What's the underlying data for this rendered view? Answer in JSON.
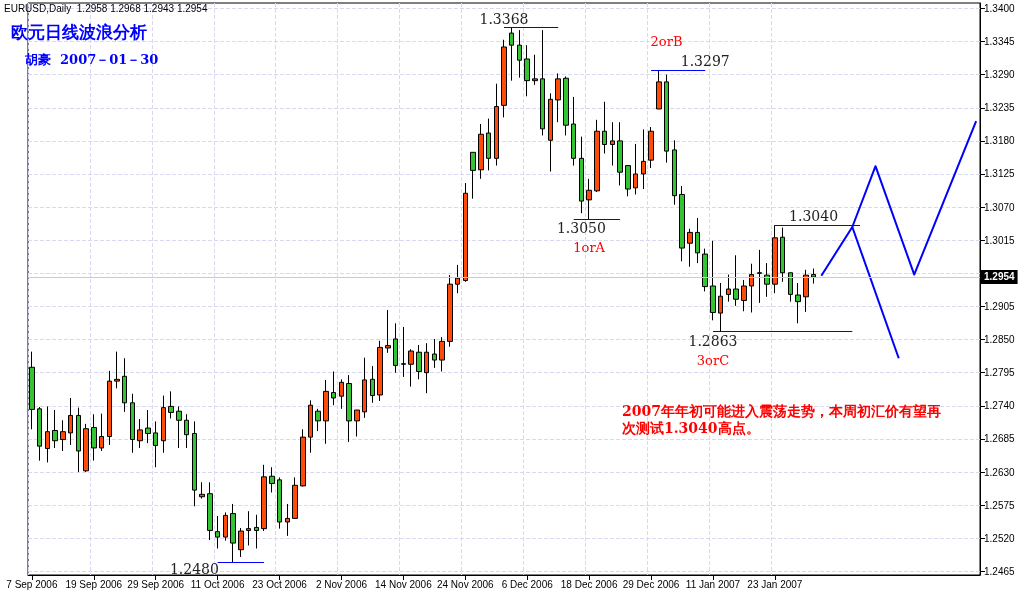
{
  "chart_data": {
    "type": "candlestick",
    "title": "欧元日线波浪分析",
    "subtitle": "胡豪  2007－01－30",
    "annotations": [
      "EURUSD,Daily  1.2958 1.2968 1.2943 1.2954",
      "2007年年初可能进入震荡走势，本周初汇价有望再次测试1.3040高点。",
      "1.3368",
      "1.3297",
      "2orB",
      "1.3050",
      "1orA",
      "1.3040",
      "1.2863",
      "3orC",
      "1.2480"
    ],
    "categories": [
      "7 Sep 2006",
      null,
      null,
      null,
      null,
      null,
      null,
      null,
      "19 Sep 2006",
      null,
      null,
      null,
      null,
      null,
      null,
      null,
      "29 Sep 2006",
      null,
      null,
      null,
      null,
      null,
      null,
      null,
      "11 Oct 2006",
      null,
      null,
      null,
      null,
      null,
      null,
      null,
      "23 Oct 2006",
      null,
      null,
      null,
      null,
      null,
      null,
      null,
      "2 Nov 2006",
      null,
      null,
      null,
      null,
      null,
      null,
      null,
      "14 Nov 2006",
      null,
      null,
      null,
      null,
      null,
      null,
      null,
      "24 Nov 2006",
      null,
      null,
      null,
      null,
      null,
      null,
      null,
      "6 Dec 2006",
      null,
      null,
      null,
      null,
      null,
      null,
      null,
      "18 Dec 2006",
      null,
      null,
      null,
      null,
      null,
      null,
      null,
      "29 Dec 2006",
      null,
      null,
      null,
      null,
      null,
      null,
      null,
      "11 Jan 2007",
      null,
      null,
      null,
      null,
      null,
      null,
      null,
      "23 Jan 2007",
      null,
      null,
      null,
      null,
      null,
      null,
      null,
      null,
      null,
      null,
      null,
      null,
      null,
      null,
      null,
      null,
      null,
      null,
      null,
      null,
      null,
      null,
      null,
      null,
      null,
      null
    ],
    "ohlc": [
      [
        1.2804,
        1.283,
        1.2701,
        1.2734
      ],
      [
        1.2735,
        1.2738,
        1.2649,
        1.2673
      ],
      [
        1.2669,
        1.2739,
        1.2646,
        1.2697
      ],
      [
        1.2699,
        1.2733,
        1.267,
        1.2682
      ],
      [
        1.2684,
        1.2716,
        1.2665,
        1.2697
      ],
      [
        1.2695,
        1.2753,
        1.2675,
        1.2724
      ],
      [
        1.2724,
        1.2737,
        1.263,
        1.2665
      ],
      [
        1.2632,
        1.271,
        1.263,
        1.2702
      ],
      [
        1.2704,
        1.2726,
        1.2649,
        1.267
      ],
      [
        1.267,
        1.2727,
        1.2665,
        1.2689
      ],
      [
        1.2689,
        1.2798,
        1.2675,
        1.2781
      ],
      [
        1.2781,
        1.283,
        1.2769,
        1.2784
      ],
      [
        1.2789,
        1.2819,
        1.273,
        1.2745
      ],
      [
        1.2745,
        1.276,
        1.2662,
        1.2684
      ],
      [
        1.2682,
        1.2718,
        1.267,
        1.27
      ],
      [
        1.2703,
        1.2733,
        1.2678,
        1.2694
      ],
      [
        1.2695,
        1.2714,
        1.2638,
        1.2674
      ],
      [
        1.2682,
        1.2757,
        1.2662,
        1.2737
      ],
      [
        1.2739,
        1.2764,
        1.2719,
        1.2729
      ],
      [
        1.2731,
        1.2739,
        1.267,
        1.2716
      ],
      [
        1.2716,
        1.2726,
        1.267,
        1.2692
      ],
      [
        1.2694,
        1.2714,
        1.2573,
        1.26
      ],
      [
        1.2589,
        1.2613,
        1.2586,
        1.2593
      ],
      [
        1.2594,
        1.2613,
        1.2517,
        1.2533
      ],
      [
        1.2531,
        1.2557,
        1.2503,
        1.2522
      ],
      [
        1.2522,
        1.2563,
        1.2516,
        1.2558
      ],
      [
        1.2561,
        1.2577,
        1.248,
        1.2512
      ],
      [
        1.2501,
        1.2537,
        1.2489,
        1.2532
      ],
      [
        1.2533,
        1.2565,
        1.2508,
        1.2536
      ],
      [
        1.2538,
        1.2559,
        1.2503,
        1.2533
      ],
      [
        1.2536,
        1.2642,
        1.2532,
        1.2622
      ],
      [
        1.2623,
        1.2638,
        1.2596,
        1.2611
      ],
      [
        1.2617,
        1.2621,
        1.2536,
        1.2547
      ],
      [
        1.2547,
        1.2577,
        1.2524,
        1.2553
      ],
      [
        1.2553,
        1.2621,
        1.2553,
        1.2608
      ],
      [
        1.2607,
        1.2701,
        1.2606,
        1.2688
      ],
      [
        1.2688,
        1.2749,
        1.2662,
        1.2741
      ],
      [
        1.2731,
        1.2735,
        1.2698,
        1.2715
      ],
      [
        1.2715,
        1.2783,
        1.2677,
        1.2764
      ],
      [
        1.2762,
        1.2797,
        1.2741,
        1.2753
      ],
      [
        1.2756,
        1.2784,
        1.2735,
        1.2779
      ],
      [
        1.2777,
        1.2791,
        1.268,
        1.2715
      ],
      [
        1.2715,
        1.2733,
        1.2689,
        1.2733
      ],
      [
        1.273,
        1.282,
        1.272,
        1.2783
      ],
      [
        1.2784,
        1.2806,
        1.2745,
        1.2757
      ],
      [
        1.2758,
        1.2848,
        1.2748,
        1.2837
      ],
      [
        1.2836,
        1.2899,
        1.2828,
        1.284
      ],
      [
        1.2851,
        1.2877,
        1.2795,
        1.2807
      ],
      [
        1.281,
        1.2871,
        1.2788,
        1.2809
      ],
      [
        1.2809,
        1.2834,
        1.2772,
        1.2831
      ],
      [
        1.2829,
        1.2841,
        1.2784,
        1.2797
      ],
      [
        1.2795,
        1.2844,
        1.2761,
        1.2829
      ],
      [
        1.2826,
        1.2851,
        1.2803,
        1.2816
      ],
      [
        1.2816,
        1.2854,
        1.2797,
        1.2847
      ],
      [
        1.2847,
        1.2957,
        1.2838,
        1.2942
      ],
      [
        1.2942,
        1.2974,
        1.2927,
        1.2952
      ],
      [
        1.2948,
        1.311,
        1.2946,
        1.3093
      ],
      [
        1.3161,
        1.3161,
        1.3084,
        1.3131
      ],
      [
        1.3132,
        1.3208,
        1.3117,
        1.3191
      ],
      [
        1.3193,
        1.3217,
        1.3131,
        1.3151
      ],
      [
        1.3151,
        1.3275,
        1.3139,
        1.3237
      ],
      [
        1.3239,
        1.3348,
        1.3219,
        1.3336
      ],
      [
        1.3359,
        1.3368,
        1.328,
        1.3339
      ],
      [
        1.3339,
        1.3364,
        1.3285,
        1.3314
      ],
      [
        1.3316,
        1.3339,
        1.3254,
        1.328
      ],
      [
        1.328,
        1.3323,
        1.3273,
        1.3283
      ],
      [
        1.3283,
        1.3364,
        1.3189,
        1.32
      ],
      [
        1.3181,
        1.3259,
        1.3129,
        1.3249
      ],
      [
        1.3248,
        1.3292,
        1.3211,
        1.3283
      ],
      [
        1.3284,
        1.3287,
        1.3189,
        1.3206
      ],
      [
        1.3208,
        1.3253,
        1.3139,
        1.3151
      ],
      [
        1.3151,
        1.3187,
        1.306,
        1.308
      ],
      [
        1.3082,
        1.3117,
        1.305,
        1.3098
      ],
      [
        1.3097,
        1.3215,
        1.3095,
        1.3196
      ],
      [
        1.3196,
        1.3245,
        1.3159,
        1.3174
      ],
      [
        1.3174,
        1.3211,
        1.3139,
        1.318
      ],
      [
        1.318,
        1.3211,
        1.3106,
        1.3128
      ],
      [
        1.3139,
        1.3139,
        1.3088,
        1.31
      ],
      [
        1.3102,
        1.3175,
        1.3091,
        1.3125
      ],
      [
        1.3125,
        1.3199,
        1.31,
        1.3146
      ],
      [
        1.3148,
        1.3203,
        1.3135,
        1.3196
      ],
      [
        1.3233,
        1.3297,
        1.3233,
        1.3278
      ],
      [
        1.3278,
        1.329,
        1.3144,
        1.3163
      ],
      [
        1.3165,
        1.3181,
        1.3074,
        1.3089
      ],
      [
        1.3091,
        1.3105,
        1.298,
        1.3002
      ],
      [
        1.301,
        1.3034,
        1.2971,
        1.3028
      ],
      [
        1.3028,
        1.3052,
        1.2977,
        1.2994
      ],
      [
        1.2992,
        1.3001,
        1.293,
        1.2938
      ],
      [
        1.2939,
        1.3014,
        1.2882,
        1.2895
      ],
      [
        1.2894,
        1.2944,
        1.2863,
        1.2922
      ],
      [
        1.2925,
        1.2958,
        1.2913,
        1.2934
      ],
      [
        1.2934,
        1.299,
        1.2906,
        1.2917
      ],
      [
        1.2915,
        1.2949,
        1.2897,
        1.2939
      ],
      [
        1.2939,
        1.2976,
        1.2895,
        1.2958
      ],
      [
        1.2961,
        1.2999,
        1.2911,
        1.296
      ],
      [
        1.2957,
        1.2977,
        1.2921,
        1.2942
      ],
      [
        1.2942,
        1.304,
        1.2927,
        1.3019
      ],
      [
        1.302,
        1.3036,
        1.2946,
        1.2961
      ],
      [
        1.2961,
        1.2961,
        1.2913,
        1.2925
      ],
      [
        1.2924,
        1.2944,
        1.2877,
        1.2913
      ],
      [
        1.2921,
        1.2966,
        1.2896,
        1.2957
      ],
      [
        1.2958,
        1.2968,
        1.2943,
        1.2954
      ],
      null,
      null,
      null,
      null,
      null,
      null,
      null,
      null,
      null,
      null,
      null,
      null,
      null,
      null,
      null,
      null,
      null,
      null,
      null,
      null,
      null
    ],
    "colors": [
      "#33c433",
      "#33c433",
      "#ff4a0a",
      "#33c433",
      "#ff4a0a",
      "#ff4a0a",
      "#33c433",
      "#ff4a0a",
      "#33c433",
      "#ff4a0a",
      "#ff4a0a",
      "#ff4a0a",
      "#33c433",
      "#33c433",
      "#ff4a0a",
      "#33c433",
      "#33c433",
      "#ff4a0a",
      "#33c433",
      "#33c433",
      "#33c433",
      "#33c433",
      "#ff4a0a",
      "#33c433",
      "#33c433",
      "#ff4a0a",
      "#33c433",
      "#ff4a0a",
      "#ff4a0a",
      "#33c433",
      "#ff4a0a",
      "#33c433",
      "#33c433",
      "#ff4a0a",
      "#ff4a0a",
      "#ff4a0a",
      "#ff4a0a",
      "#33c433",
      "#ff4a0a",
      "#33c433",
      "#ff4a0a",
      "#33c433",
      "#ff4a0a",
      "#ff4a0a",
      "#33c433",
      "#ff4a0a",
      "#ff4a0a",
      "#33c433",
      "#33c433",
      "#ff4a0a",
      "#33c433",
      "#ff4a0a",
      "#33c433",
      "#ff4a0a",
      "#ff4a0a",
      "#ff4a0a",
      "#ff4a0a",
      "#33c433",
      "#ff4a0a",
      "#33c433",
      "#ff4a0a",
      "#ff4a0a",
      "#33c433",
      "#33c433",
      "#33c433",
      "#ff4a0a",
      "#33c433",
      "#ff4a0a",
      "#ff4a0a",
      "#33c433",
      "#33c433",
      "#33c433",
      "#ff4a0a",
      "#ff4a0a",
      "#33c433",
      "#ff4a0a",
      "#33c433",
      "#33c433",
      "#ff4a0a",
      "#ff4a0a",
      "#ff4a0a",
      "#ff4a0a",
      "#33c433",
      "#33c433",
      "#33c433",
      "#ff4a0a",
      "#33c433",
      "#33c433",
      "#33c433",
      "#ff4a0a",
      "#ff4a0a",
      "#33c433",
      "#ff4a0a",
      "#ff4a0a",
      "#33c433",
      "#33c433",
      "#ff4a0a",
      "#33c433",
      "#33c433",
      "#33c433",
      "#ff4a0a",
      "#33c433",
      null,
      null,
      null,
      null,
      null,
      null,
      null,
      null,
      null,
      null,
      null,
      null,
      null,
      null,
      null,
      null,
      null,
      null,
      null,
      null,
      null
    ],
    "series": [
      {
        "type": "line",
        "color": "#0000ff",
        "values": [
          null,
          null,
          null,
          null,
          null,
          null,
          null,
          null,
          null,
          null,
          null,
          null,
          null,
          null,
          null,
          null,
          null,
          null,
          null,
          null,
          null,
          null,
          null,
          null,
          null,
          null,
          null,
          null,
          null,
          null,
          null,
          null,
          null,
          null,
          null,
          null,
          null,
          null,
          null,
          null,
          null,
          null,
          null,
          null,
          null,
          null,
          null,
          null,
          null,
          null,
          null,
          null,
          null,
          null,
          null,
          null,
          null,
          null,
          null,
          null,
          null,
          null,
          null,
          null,
          null,
          null,
          null,
          null,
          null,
          null,
          null,
          null,
          null,
          null,
          null,
          null,
          null,
          null,
          null,
          null,
          null,
          null,
          null,
          null,
          null,
          null,
          null,
          null,
          null,
          null,
          null,
          null,
          null,
          null,
          null,
          null,
          null,
          null,
          null,
          null,
          null,
          null,
          1.2956,
          null,
          null,
          null,
          1.3037,
          null,
          null,
          1.3138,
          null,
          null,
          null,
          null,
          1.2958,
          null,
          null,
          null,
          null,
          null,
          null,
          null,
          1.3213
        ]
      },
      {
        "type": "line",
        "color": "#0000ff",
        "values": [
          null,
          null,
          null,
          null,
          null,
          null,
          null,
          null,
          null,
          null,
          null,
          null,
          null,
          null,
          null,
          null,
          null,
          null,
          null,
          null,
          null,
          null,
          null,
          null,
          null,
          null,
          null,
          null,
          null,
          null,
          null,
          null,
          null,
          null,
          null,
          null,
          null,
          null,
          null,
          null,
          null,
          null,
          null,
          null,
          null,
          null,
          null,
          null,
          null,
          null,
          null,
          null,
          null,
          null,
          null,
          null,
          null,
          null,
          null,
          null,
          null,
          null,
          null,
          null,
          null,
          null,
          null,
          null,
          null,
          null,
          null,
          null,
          null,
          null,
          null,
          null,
          null,
          null,
          null,
          null,
          null,
          null,
          null,
          null,
          null,
          null,
          null,
          null,
          null,
          null,
          null,
          null,
          null,
          null,
          null,
          null,
          null,
          null,
          null,
          null,
          null,
          null,
          null,
          null,
          null,
          null,
          1.3037,
          null,
          null,
          null,
          null,
          null,
          1.2819,
          null,
          null,
          null,
          null,
          null,
          null,
          null,
          null,
          null,
          null
        ]
      }
    ],
    "marker": "none",
    "ylim": [
      1.2459,
      1.3409
    ],
    "yticks": [
      {
        "value": 1.2465,
        "label": "1.2465"
      },
      {
        "value": 1.252,
        "label": "1.2520"
      },
      {
        "value": 1.2575,
        "label": "1.2575"
      },
      {
        "value": 1.263,
        "label": "1.2630"
      },
      {
        "value": 1.2685,
        "label": "1.2685"
      },
      {
        "value": 1.274,
        "label": "1.2740"
      },
      {
        "value": 1.2795,
        "label": "1.2795"
      },
      {
        "value": 1.285,
        "label": "1.2850"
      },
      {
        "value": 1.2905,
        "label": "1.2905"
      },
      {
        "value": 1.296,
        "label": null
      },
      {
        "value": 1.3015,
        "label": "1.3015"
      },
      {
        "value": 1.307,
        "label": "1.3070"
      },
      {
        "value": 1.3125,
        "label": "1.3125"
      },
      {
        "value": 1.318,
        "label": "1.3180"
      },
      {
        "value": 1.3235,
        "label": "1.3235"
      },
      {
        "value": 1.329,
        "label": "1.3290"
      },
      {
        "value": 1.3345,
        "label": "1.3345"
      },
      {
        "value": 1.34,
        "label": "1.3400"
      }
    ],
    "grid": true,
    "ref_lines": [
      {
        "axis": "y",
        "value": 1.2954,
        "label": "1.2954"
      }
    ]
  }
}
